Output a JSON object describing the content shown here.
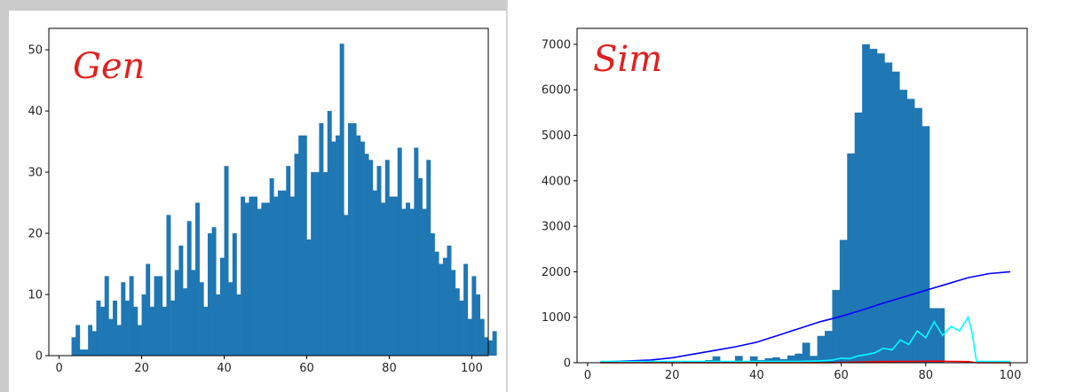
{
  "annotations": {
    "left": "Gen",
    "right": "Sim"
  },
  "colors": {
    "bar": "#1f77b4",
    "line_blue": "#0000ff",
    "line_cyan": "#00ffff",
    "line_red": "#ff0000",
    "annotation": "#e02020"
  },
  "chart_data": [
    {
      "type": "bar",
      "title": "",
      "xlabel": "",
      "ylabel": "",
      "xlim": [
        -2.5,
        104
      ],
      "ylim": [
        0,
        53.5
      ],
      "xticks": [
        0,
        20,
        40,
        60,
        80,
        100
      ],
      "yticks": [
        0,
        10,
        20,
        30,
        40,
        50
      ],
      "bin_start": 3,
      "bin_width": 1,
      "values": [
        3,
        5,
        1,
        1,
        5,
        4,
        9,
        8,
        13,
        6,
        9,
        5,
        12,
        9,
        13,
        8,
        5,
        10,
        15,
        8,
        13,
        13,
        8,
        23,
        9,
        14,
        18,
        11,
        22,
        14,
        25,
        12,
        8,
        20,
        21,
        10,
        16,
        31,
        12,
        20,
        10,
        26,
        25,
        26,
        26,
        24,
        25,
        25,
        29,
        26,
        27,
        27,
        31,
        26,
        33,
        36,
        36,
        19,
        30,
        30,
        38,
        30,
        40,
        35,
        36,
        51,
        23,
        38,
        38,
        36,
        35,
        33,
        32,
        27,
        31,
        25,
        32,
        26,
        26,
        34,
        24,
        25,
        24,
        34,
        29,
        24,
        32,
        20,
        17,
        15,
        16,
        18,
        14,
        11,
        9,
        15,
        6,
        13,
        10,
        6,
        3,
        2.5,
        4
      ]
    },
    {
      "type": "bar",
      "title": "",
      "xlabel": "",
      "ylabel": "",
      "xlim": [
        -2.5,
        104
      ],
      "ylim": [
        0,
        7350
      ],
      "xticks": [
        0,
        20,
        40,
        60,
        80,
        100
      ],
      "yticks": [
        0,
        1000,
        2000,
        3000,
        4000,
        5000,
        6000,
        7000
      ],
      "bin_start": 3,
      "bin_width": 1.77,
      "values": [
        10,
        10,
        10,
        10,
        10,
        10,
        30,
        10,
        20,
        10,
        10,
        40,
        40,
        40,
        60,
        140,
        30,
        30,
        150,
        40,
        140,
        60,
        100,
        120,
        80,
        160,
        200,
        440,
        150,
        590,
        700,
        1600,
        2700,
        4600,
        5500,
        7000,
        6900,
        6800,
        6600,
        6400,
        6000,
        5800,
        5600,
        5200,
        1200,
        1200
      ],
      "lines": [
        {
          "name": "",
          "color": "#0000ff",
          "x": [
            3,
            10,
            15,
            20,
            25,
            30,
            35,
            40,
            45,
            50,
            55,
            60,
            65,
            70,
            75,
            80,
            85,
            90,
            95,
            100
          ],
          "y": [
            20,
            40,
            60,
            110,
            190,
            270,
            350,
            450,
            600,
            750,
            900,
            1020,
            1160,
            1310,
            1450,
            1590,
            1730,
            1870,
            1960,
            2000
          ]
        },
        {
          "name": "",
          "color": "#00ffff",
          "x": [
            3,
            10,
            20,
            30,
            40,
            50,
            55,
            58,
            60,
            62,
            64,
            66,
            68,
            70,
            72,
            74,
            76,
            78,
            80,
            82,
            84,
            86,
            88,
            90,
            91,
            92,
            93,
            100
          ],
          "y": [
            30,
            30,
            30,
            30,
            30,
            30,
            40,
            60,
            100,
            90,
            150,
            180,
            220,
            320,
            280,
            500,
            400,
            700,
            550,
            900,
            600,
            800,
            700,
            1000,
            650,
            30,
            30,
            30
          ]
        },
        {
          "name": "",
          "color": "#ff0000",
          "x": [
            3,
            58,
            62,
            66,
            70,
            74,
            78,
            82,
            86,
            90,
            92,
            100
          ],
          "y": [
            0,
            0,
            10,
            20,
            25,
            30,
            30,
            35,
            30,
            25,
            0,
            0
          ]
        }
      ]
    }
  ]
}
